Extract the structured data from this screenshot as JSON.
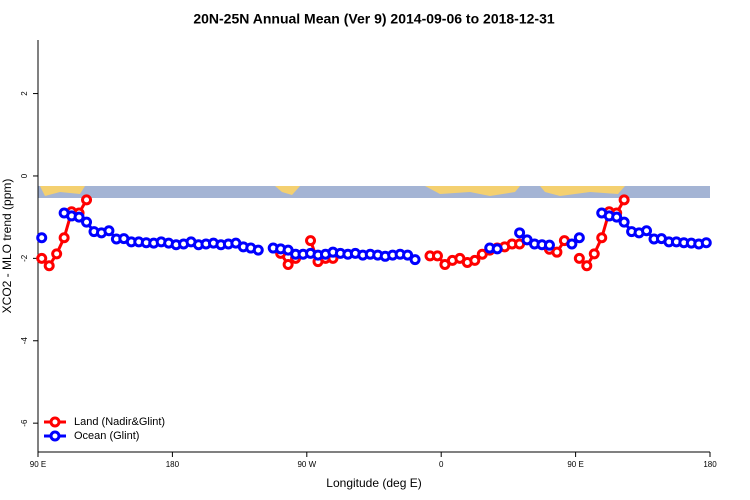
{
  "chart_data": {
    "type": "line",
    "title": "20N-25N Annual Mean (Ver 9)   2014-09-06 to 2018-12-31",
    "x_label": "Longitude (deg E)",
    "y_label": "XCO2 - MLO trend (ppm)",
    "xlim": [
      90,
      540
    ],
    "ylim": [
      -6.7,
      3.3
    ],
    "xticks": [
      {
        "value": 90,
        "label": "90 E"
      },
      {
        "value": 180,
        "label": "180"
      },
      {
        "value": 270,
        "label": "90 W"
      },
      {
        "value": 360,
        "label": "0"
      },
      {
        "value": 450,
        "label": "90 E"
      },
      {
        "value": 540,
        "label": "180"
      }
    ],
    "yticks": [
      -6,
      -4,
      -2,
      0,
      2
    ],
    "legend": "bottomleft",
    "x": [
      92.5,
      97.5,
      102.5,
      107.5,
      112.5,
      117.5,
      122.5,
      127.5,
      132.5,
      137.5,
      142.5,
      147.5,
      152.5,
      157.5,
      162.5,
      167.5,
      172.5,
      177.5,
      182.5,
      187.5,
      192.5,
      197.5,
      202.5,
      207.5,
      212.5,
      217.5,
      222.5,
      227.5,
      232.5,
      237.5,
      242.5,
      247.5,
      252.5,
      257.5,
      262.5,
      267.5,
      272.5,
      277.5,
      282.5,
      287.5,
      292.5,
      297.5,
      302.5,
      307.5,
      312.5,
      317.5,
      322.5,
      327.5,
      332.5,
      337.5,
      342.5,
      347.5,
      352.5,
      357.5,
      362.5,
      367.5,
      372.5,
      377.5,
      382.5,
      387.5,
      392.5,
      397.5,
      402.5,
      407.5,
      412.5,
      417.5,
      422.5,
      427.5,
      432.5,
      437.5,
      442.5,
      447.5,
      452.5,
      457.5,
      462.5,
      467.5,
      472.5,
      477.5,
      482.5,
      487.5,
      492.5,
      497.5,
      502.5,
      507.5,
      512.5,
      517.5,
      522.5,
      527.5,
      532.5,
      537.5
    ],
    "series": [
      {
        "name": "Land (Nadir&Glint)",
        "color": "#ff0000",
        "values": [
          -2.0,
          -2.18,
          -1.89,
          -1.5,
          -0.87,
          -0.9,
          -0.58,
          null,
          null,
          null,
          null,
          null,
          null,
          null,
          null,
          null,
          null,
          null,
          null,
          null,
          null,
          null,
          null,
          null,
          null,
          null,
          null,
          null,
          null,
          null,
          null,
          null,
          -1.88,
          -2.15,
          -2.0,
          null,
          -1.57,
          -2.08,
          -2.0,
          -2.0,
          null,
          null,
          null,
          null,
          null,
          null,
          null,
          null,
          null,
          null,
          null,
          null,
          -1.94,
          -1.94,
          -2.15,
          -2.05,
          -2.0,
          -2.1,
          -2.05,
          -1.9,
          -1.8,
          -1.75,
          -1.72,
          -1.65,
          -1.65,
          null,
          null,
          null,
          -1.78,
          -1.85,
          -1.57,
          null,
          -2.0,
          -2.18,
          -1.89,
          -1.5,
          -0.87,
          -0.9,
          -0.58,
          null,
          null,
          null,
          null,
          null,
          null,
          null,
          null,
          null,
          null,
          null
        ]
      },
      {
        "name": "Ocean (Glint)",
        "color": "#0000ff",
        "values": [
          -1.5,
          null,
          null,
          -0.9,
          -0.97,
          -1.0,
          -1.12,
          -1.35,
          -1.38,
          -1.33,
          -1.53,
          -1.52,
          -1.6,
          -1.6,
          -1.62,
          -1.63,
          -1.6,
          -1.63,
          -1.67,
          -1.65,
          -1.6,
          -1.67,
          -1.65,
          -1.63,
          -1.67,
          -1.65,
          -1.63,
          -1.72,
          -1.75,
          -1.8,
          null,
          -1.75,
          -1.77,
          -1.8,
          -1.9,
          -1.9,
          -1.88,
          -1.92,
          -1.9,
          -1.85,
          -1.88,
          -1.9,
          -1.88,
          -1.92,
          -1.9,
          -1.92,
          -1.95,
          -1.92,
          -1.9,
          -1.92,
          -2.03,
          null,
          null,
          null,
          null,
          null,
          null,
          null,
          null,
          null,
          -1.75,
          -1.77,
          null,
          null,
          -1.38,
          -1.55,
          -1.65,
          -1.67,
          -1.68,
          null,
          null,
          -1.65,
          -1.5,
          null,
          null,
          -0.9,
          -0.97,
          -1.0,
          -1.12,
          -1.35,
          -1.38,
          -1.33,
          -1.53,
          -1.52,
          -1.6,
          -1.6,
          -1.62,
          -1.63,
          -1.65,
          -1.62
        ]
      }
    ]
  }
}
